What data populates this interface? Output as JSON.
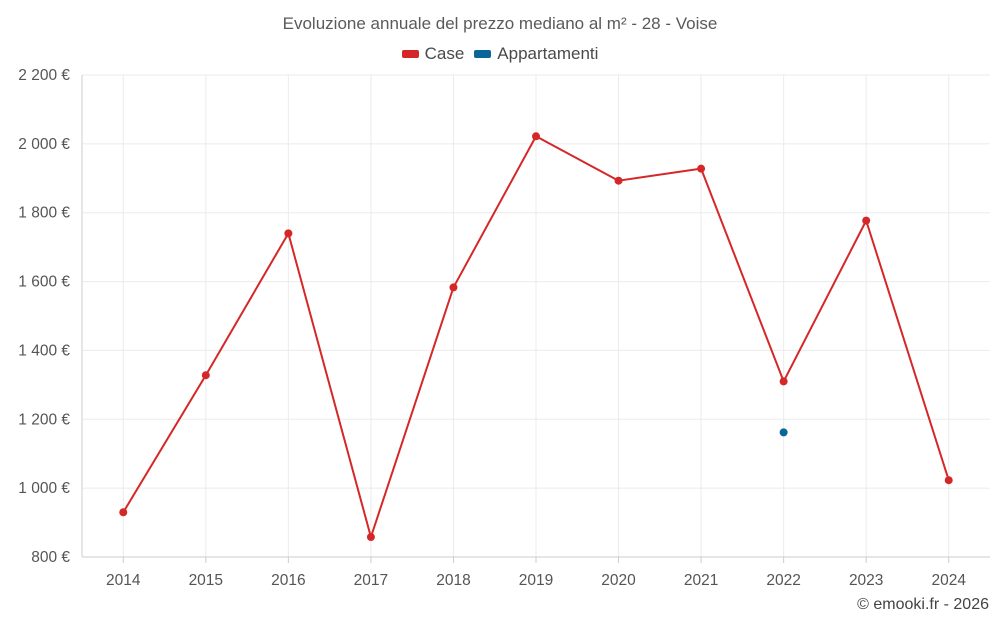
{
  "chart_data": {
    "type": "line",
    "title": "Evoluzione annuale del prezzo mediano al m² - 28 - Voise",
    "categories": [
      "2014",
      "2015",
      "2016",
      "2017",
      "2018",
      "2019",
      "2020",
      "2021",
      "2022",
      "2023",
      "2024"
    ],
    "series": [
      {
        "name": "Case",
        "color": "#d62728",
        "values": [
          930,
          1328,
          1740,
          858,
          1583,
          2022,
          1893,
          1928,
          1310,
          1777,
          1023
        ]
      },
      {
        "name": "Appartamenti",
        "color": "#0a6699",
        "values": [
          null,
          null,
          null,
          null,
          null,
          null,
          null,
          null,
          1162,
          null,
          null
        ]
      }
    ],
    "ylim": [
      800,
      2200
    ],
    "yticks": [
      800,
      1000,
      1200,
      1400,
      1600,
      1800,
      2000,
      2200
    ],
    "ytick_labels": [
      "800 €",
      "1 000 €",
      "1 200 €",
      "1 400 €",
      "1 600 €",
      "1 800 €",
      "2 000 €",
      "2 200 €"
    ],
    "grid": true,
    "legend_position": "top-center",
    "xlabel": "",
    "ylabel": ""
  },
  "credit": "© emooki.fr - 2026"
}
